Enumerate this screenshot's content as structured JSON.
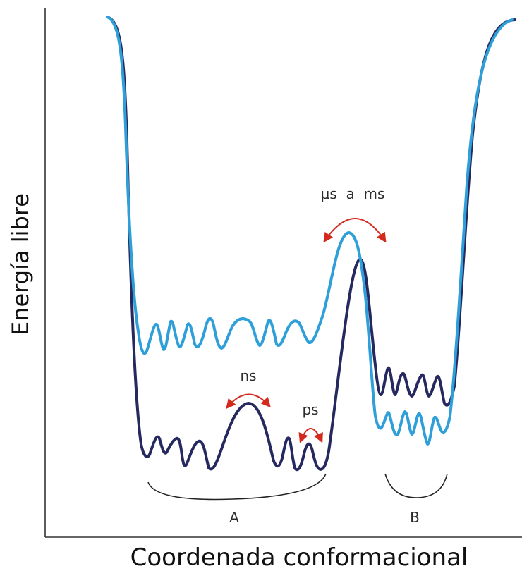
{
  "axes": {
    "x_title": "Coordenada conformacional",
    "y_title": "Energía libre"
  },
  "timescales": {
    "fast_ps": "ps",
    "medium_ns": "ns",
    "slow": "µs  a  ms"
  },
  "states": {
    "a": "A",
    "b": "B"
  },
  "colors": {
    "curve_light": "#2e9fd8",
    "curve_dark": "#26295f",
    "arrow": "#d42a1e",
    "axis": "#333333",
    "bracket": "#222222"
  }
}
